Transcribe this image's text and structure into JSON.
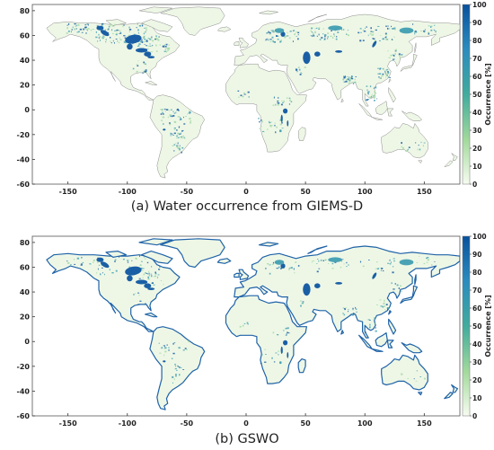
{
  "panels": [
    {
      "id": "a",
      "caption": "(a) Water occurrence from GIEMS-D",
      "coastline": "thin",
      "lon_ticks": [
        "-150",
        "-100",
        "-50",
        "0",
        "50",
        "100",
        "150"
      ],
      "lat_ticks": [
        "80",
        "60",
        "40",
        "20",
        "0",
        "-20",
        "-40",
        "-60"
      ],
      "colorbar": {
        "label": "Occurrence [%]",
        "ticks": [
          "100",
          "90",
          "80",
          "70",
          "60",
          "50",
          "40",
          "30",
          "20",
          "10",
          "0"
        ]
      }
    },
    {
      "id": "b",
      "caption": "(b) GSWO",
      "coastline": "thick-blue",
      "lon_ticks": [
        "-150",
        "-100",
        "-50",
        "0",
        "50",
        "100",
        "150"
      ],
      "lat_ticks": [
        "80",
        "60",
        "40",
        "20",
        "0",
        "-20",
        "-40",
        "-60"
      ],
      "colorbar": {
        "label": "Occurrence [%]",
        "ticks": [
          "100",
          "90",
          "80",
          "70",
          "60",
          "50",
          "40",
          "30",
          "20",
          "10",
          "0"
        ]
      }
    }
  ],
  "colors": {
    "land": "#eef7e6",
    "coast_a": "#8a8a8a",
    "coast_b": "#1f63a8",
    "water_high": "#1a5fa5",
    "water_mid": "#4aa3b5",
    "water_low": "#a6d9a8",
    "colorbar_top": "#08519c",
    "colorbar_mid": "#41ab9d",
    "colorbar_bottom": "#f7fcf0"
  }
}
